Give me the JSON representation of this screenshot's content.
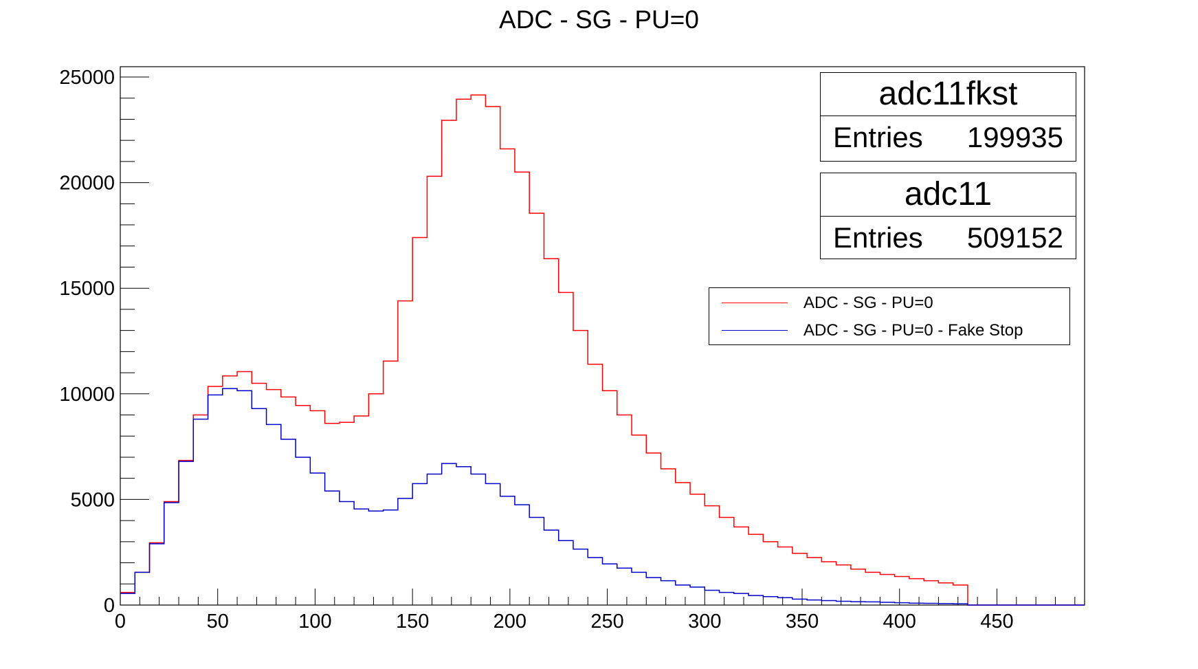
{
  "chart_data": {
    "type": "histogram",
    "title": "ADC - SG - PU=0",
    "xlabel": "",
    "ylabel": "",
    "xlim": [
      0,
      495
    ],
    "ylim": [
      0,
      25000
    ],
    "x_ticks": [
      "0",
      "50",
      "100",
      "150",
      "200",
      "250",
      "300",
      "350",
      "400",
      "450"
    ],
    "y_ticks": [
      "0",
      "5000",
      "10000",
      "15000",
      "20000",
      "25000"
    ],
    "bin_width": 7.5,
    "bin_start": 0,
    "series": [
      {
        "name": "ADC - SG - PU=0",
        "color": "#ff0000",
        "values": [
          600,
          1550,
          2950,
          4900,
          6850,
          9000,
          10350,
          10850,
          11050,
          10500,
          10200,
          9850,
          9450,
          9200,
          8600,
          8650,
          8950,
          10000,
          11550,
          14400,
          17400,
          20300,
          22950,
          23950,
          24150,
          23600,
          21600,
          20500,
          18550,
          16400,
          14800,
          13000,
          11400,
          10150,
          9000,
          8050,
          7200,
          6450,
          5800,
          5250,
          4700,
          4150,
          3700,
          3350,
          3000,
          2750,
          2450,
          2250,
          2050,
          1900,
          1700,
          1550,
          1450,
          1350,
          1250,
          1150,
          1050,
          950,
          0,
          0,
          0,
          0,
          0,
          0,
          0,
          0
        ]
      },
      {
        "name": "ADC - SG - PU=0 - Fake Stop",
        "color": "#0000cc",
        "values": [
          550,
          1550,
          2900,
          4850,
          6800,
          8800,
          9950,
          10250,
          10150,
          9300,
          8550,
          7850,
          7000,
          6250,
          5400,
          4900,
          4550,
          4450,
          4500,
          5050,
          5750,
          6200,
          6700,
          6550,
          6200,
          5750,
          5150,
          4750,
          4150,
          3550,
          3050,
          2650,
          2250,
          1950,
          1750,
          1550,
          1300,
          1150,
          950,
          850,
          700,
          600,
          550,
          450,
          400,
          350,
          280,
          240,
          210,
          180,
          160,
          150,
          130,
          110,
          90,
          80,
          70,
          60,
          0,
          0,
          0,
          0,
          0,
          0,
          0,
          0
        ]
      }
    ],
    "legend_position": "top-right"
  },
  "stat_boxes": [
    {
      "name": "adc11fkst",
      "entries_label": "Entries",
      "entries_value": "199935"
    },
    {
      "name": "adc11",
      "entries_label": "Entries",
      "entries_value": "509152"
    }
  ],
  "legend": [
    {
      "label": "ADC - SG - PU=0",
      "color": "#ff0000"
    },
    {
      "label": "ADC - SG - PU=0 - Fake Stop",
      "color": "#0000cc"
    }
  ]
}
